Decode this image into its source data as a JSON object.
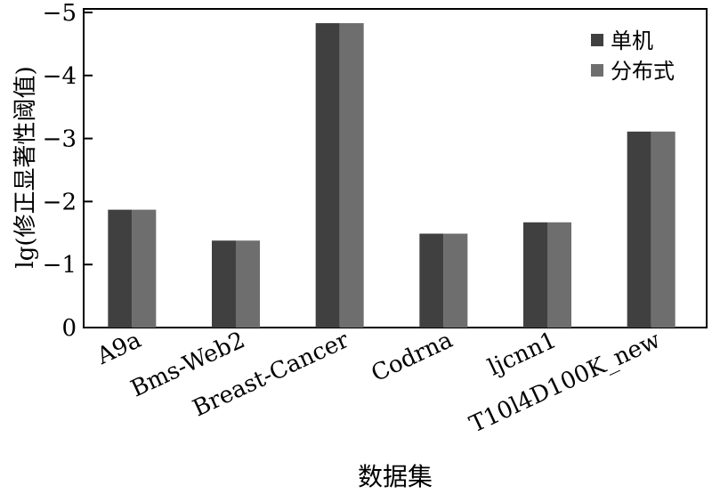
{
  "chart_data": {
    "type": "bar",
    "categories": [
      "A9a",
      "Bms-Web2",
      "Breast-Cancer",
      "Codrna",
      "ljcnn1",
      "T10l4D100K_new"
    ],
    "series": [
      {
        "name": "单机",
        "values": [
          -1.87,
          -1.38,
          -4.83,
          -1.49,
          -1.67,
          -3.11
        ]
      },
      {
        "name": "分布式",
        "values": [
          -1.87,
          -1.38,
          -4.83,
          -1.49,
          -1.67,
          -3.11
        ]
      }
    ],
    "xlabel": "数据集",
    "ylabel": "lg(修正显著性阈值)",
    "ylim": [
      0,
      -5
    ],
    "yticks": [
      "0",
      "−1",
      "−2",
      "−3",
      "−4",
      "−5"
    ],
    "legend_position": "top-right",
    "grid": false,
    "colors": [
      "#404040",
      "#6e6e6e"
    ]
  }
}
